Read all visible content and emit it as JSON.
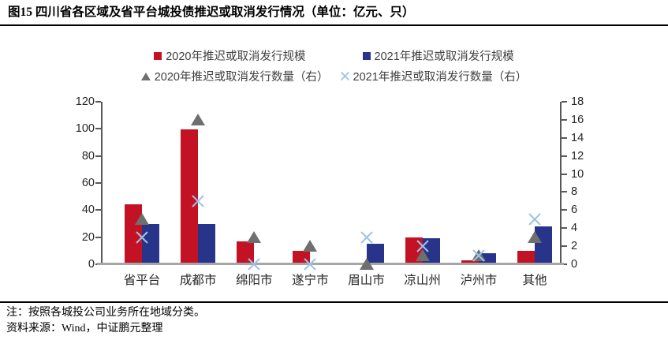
{
  "header": {
    "title": "图15 四川省各区域及省平台城投债推迟或取消发行情况（单位：亿元、只）"
  },
  "chart_data": {
    "type": "bar",
    "subtype": "combo-bar-scatter-dual-axis",
    "title": "四川省各区域及省平台城投债推迟或取消发行情况",
    "unit": "亿元、只",
    "categories": [
      "省平台",
      "成都市",
      "绵阳市",
      "遂宁市",
      "眉山市",
      "凉山州",
      "泸州市",
      "其他"
    ],
    "series": [
      {
        "name": "2020年推迟或取消发行规模",
        "type": "bar",
        "axis": "left",
        "marker": "square",
        "color": "#C31224",
        "values": [
          44,
          99.5,
          17,
          10,
          0,
          20,
          3,
          10
        ]
      },
      {
        "name": "2021年推迟或取消发行规模",
        "type": "bar",
        "axis": "left",
        "marker": "square",
        "color": "#28338A",
        "values": [
          30,
          30,
          0,
          0,
          15,
          19,
          8,
          28
        ]
      },
      {
        "name": "2020年推迟或取消发行数量（右）",
        "type": "scatter",
        "axis": "right",
        "marker": "triangle",
        "color": "#6F6F6F",
        "values": [
          5,
          16,
          3,
          2,
          0,
          1,
          1,
          3
        ]
      },
      {
        "name": "2021年推迟或取消发行数量（右）",
        "type": "scatter",
        "axis": "right",
        "marker": "x",
        "color": "#9DC3E6",
        "values": [
          3,
          7,
          0,
          0,
          3,
          2,
          1,
          5
        ]
      }
    ],
    "left_axis": {
      "min": 0,
      "max": 120,
      "step": 20,
      "ticks": [
        0,
        20,
        40,
        60,
        80,
        100,
        120
      ]
    },
    "right_axis": {
      "min": 0,
      "max": 18,
      "step": 2,
      "ticks": [
        0,
        2,
        4,
        6,
        8,
        10,
        12,
        14,
        16,
        18
      ]
    },
    "grid": false,
    "legend_position": "top"
  },
  "footer": {
    "note": "注：按照各城投公司业务所在地域分类。",
    "source": "资料来源：Wind，中证鹏元整理"
  }
}
